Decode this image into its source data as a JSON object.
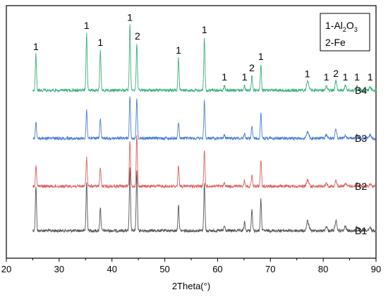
{
  "chart_data": {
    "type": "line",
    "xlabel": "2Theta(°)",
    "ylabel": "",
    "xlim": [
      20,
      90
    ],
    "xticks": [
      20,
      30,
      40,
      50,
      60,
      70,
      80,
      90
    ],
    "grid": false,
    "legend": {
      "placement": "top-right",
      "entries": [
        {
          "prefix": "1-Al",
          "sub1": "2",
          "mid": "O",
          "sub2": "3"
        },
        {
          "text": "2-Fe"
        }
      ]
    },
    "peaks": [
      {
        "two_theta": 25.6,
        "phase": "1"
      },
      {
        "two_theta": 35.2,
        "phase": "1"
      },
      {
        "two_theta": 37.8,
        "phase": "1"
      },
      {
        "two_theta": 43.4,
        "phase": "1"
      },
      {
        "two_theta": 44.7,
        "phase": "2"
      },
      {
        "two_theta": 52.6,
        "phase": "1"
      },
      {
        "two_theta": 57.5,
        "phase": "1"
      },
      {
        "two_theta": 61.3,
        "phase": "1"
      },
      {
        "two_theta": 65.1,
        "phase": "1"
      },
      {
        "two_theta": 66.5,
        "phase": "2"
      },
      {
        "two_theta": 68.2,
        "phase": "1"
      },
      {
        "two_theta": 77.0,
        "phase": "1"
      },
      {
        "two_theta": 80.6,
        "phase": "1"
      },
      {
        "two_theta": 82.4,
        "phase": "2"
      },
      {
        "two_theta": 84.2,
        "phase": "1"
      },
      {
        "two_theta": 86.4,
        "phase": "1"
      },
      {
        "two_theta": 88.9,
        "phase": "1"
      }
    ],
    "series": [
      {
        "name": "B1",
        "color": "#555555",
        "offset": 0,
        "intensities": [
          0.72,
          0.78,
          0.38,
          1.0,
          0.95,
          0.42,
          0.78,
          0.08,
          0.13,
          0.34,
          0.5,
          0.15,
          0.07,
          0.16,
          0.07,
          0.07,
          0.05
        ]
      },
      {
        "name": "B2",
        "color": "#e06060",
        "offset": 1,
        "intensities": [
          0.33,
          0.47,
          0.3,
          0.72,
          0.82,
          0.33,
          0.58,
          0.06,
          0.1,
          0.18,
          0.43,
          0.1,
          0.05,
          0.1,
          0.05,
          0.05,
          0.04
        ]
      },
      {
        "name": "B3",
        "color": "#4a7fd4",
        "offset": 2,
        "intensities": [
          0.26,
          0.45,
          0.31,
          0.68,
          0.63,
          0.26,
          0.6,
          0.07,
          0.08,
          0.19,
          0.4,
          0.1,
          0.06,
          0.14,
          0.05,
          0.05,
          0.05
        ]
      },
      {
        "name": "B4",
        "color": "#3cb27a",
        "offset": 3,
        "intensities": [
          0.58,
          0.92,
          0.65,
          1.05,
          0.75,
          0.52,
          0.85,
          0.07,
          0.08,
          0.24,
          0.42,
          0.14,
          0.07,
          0.15,
          0.07,
          0.06,
          0.05
        ]
      }
    ]
  }
}
